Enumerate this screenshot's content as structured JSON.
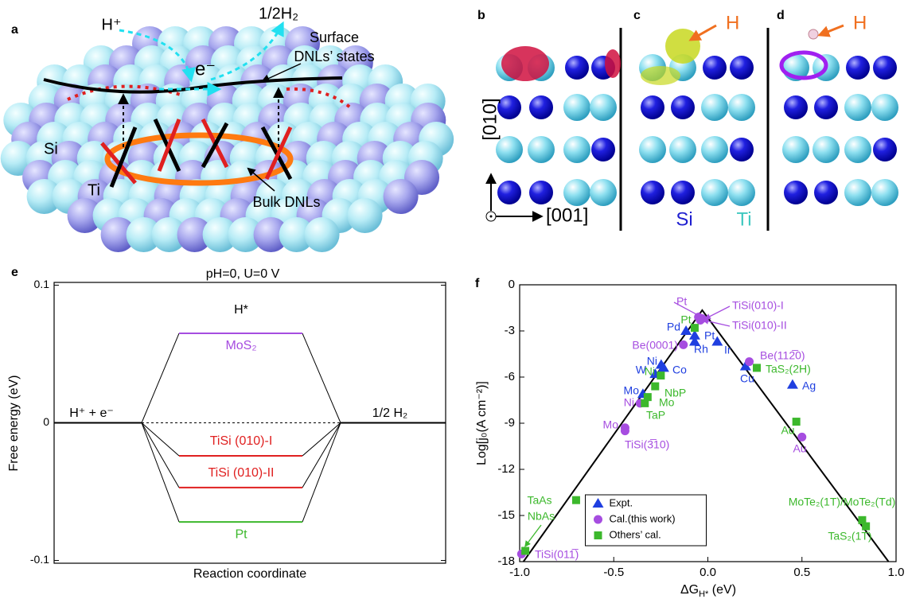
{
  "panel_a": {
    "label": "a",
    "h_plus": "H⁺",
    "half_h2": "1/2H₂",
    "surface_states": [
      "Surface",
      "DNLs’ states"
    ],
    "electron": "e⁻",
    "si": "Si",
    "ti": "Ti",
    "bulk": "Bulk DNLs"
  },
  "panels_bcd": {
    "labels": [
      "b",
      "c",
      "d"
    ],
    "h": [
      "H",
      "H"
    ],
    "axis_010": "[010]",
    "axis_001": "[001]",
    "si": "Si",
    "ti": "Ti"
  },
  "chart_data": [
    {
      "type": "line",
      "panel_label": "e",
      "title": "pH=0, U=0 V",
      "categories": [
        "H⁺ + e⁻",
        "H*",
        "1/2 H₂"
      ],
      "ylabel": "Free energy (eV)",
      "xlabel": "Reaction coordinate",
      "ylim": [
        -0.102,
        0.102
      ],
      "yticks": [
        0.1,
        0,
        -0.1
      ],
      "series": [
        {
          "name": "MoS₂",
          "color": "#a64de0",
          "values": [
            0,
            0.065,
            0
          ]
        },
        {
          "name": "TiSi (010)-I",
          "color": "#e02020",
          "values": [
            0,
            -0.024,
            0
          ]
        },
        {
          "name": "TiSi (010)-II",
          "color": "#e02020",
          "values": [
            0,
            -0.047,
            0
          ]
        },
        {
          "name": "Pt",
          "color": "#3cb82c",
          "values": [
            0,
            -0.072,
            0
          ]
        }
      ]
    },
    {
      "type": "scatter",
      "panel_label": "f",
      "ylabel": "Log[j₀(A cm⁻²)]",
      "xlabel": [
        "ΔG",
        "H*",
        " (eV)"
      ],
      "xlim": [
        -1,
        1
      ],
      "ylim": [
        -18,
        0
      ],
      "xticks": [
        {
          "value": -1,
          "label": "-1.0"
        },
        -0.5,
        {
          "value": 0,
          "label": "0.0"
        },
        0.5,
        {
          "value": 1,
          "label": "1.0"
        }
      ],
      "yticks": [
        0,
        -3,
        -6,
        -9,
        -12,
        -15,
        -18
      ],
      "legend": "lower center",
      "fit": {
        "x": [
          -0.98,
          -0.03,
          0.96
        ],
        "y": [
          -18,
          -1.65,
          -18
        ]
      },
      "series": [
        {
          "name": "Expt.",
          "color": "#1f3fe0",
          "marker": "triangle",
          "labels": [
            "W",
            "Mo",
            "Ni",
            "Co",
            "Pd",
            "Pt",
            "Rh",
            "Ir",
            "Cu",
            "Ag"
          ],
          "x": [
            -0.28,
            -0.345,
            -0.248,
            -0.235,
            -0.116,
            -0.07,
            -0.07,
            0.05,
            0.2,
            0.45
          ],
          "values": [
            -5.8,
            -7.1,
            -5.2,
            -5.4,
            -3.0,
            -3.3,
            -3.7,
            -3.7,
            -5.3,
            -6.5
          ]
        },
        {
          "name": "Cal.(this work)",
          "color": "#a64de0",
          "marker": "circle",
          "labels": [
            "Pt",
            "TiSi(010)-I",
            "TiSi(010)-II",
            "Be(0001)",
            "Ni",
            "Mo",
            "TiSi(3̅10)",
            "Be(112̅0)",
            "Au",
            "TiSi(011̅)"
          ],
          "x": [
            -0.05,
            -0.03,
            -0.04,
            -0.13,
            -0.36,
            -0.44,
            -0.44,
            0.22,
            0.5,
            -0.99
          ],
          "values": [
            -2.1,
            -2.2,
            -2.3,
            -3.9,
            -7.7,
            -9.3,
            -9.5,
            -5.0,
            -9.9,
            -17.5
          ]
        },
        {
          "name": "Others’ cal.",
          "color": "#3cb82c",
          "marker": "square",
          "labels": [
            "Pt",
            "Ni",
            "Mo",
            "NbP",
            "TaP",
            "TaS₂(2H)",
            "Au",
            "TaAs",
            "NbAs",
            "MoTe₂(1T)/MoTe₂(Td)",
            "TaS₂(1T)"
          ],
          "x": [
            -0.07,
            -0.25,
            -0.32,
            -0.28,
            -0.335,
            0.26,
            0.47,
            -0.7,
            -0.97,
            0.82,
            0.84
          ],
          "values": [
            -2.8,
            -5.9,
            -7.3,
            -6.6,
            -7.7,
            -5.4,
            -8.9,
            -14.0,
            -17.3,
            -15.3,
            -15.7
          ]
        }
      ]
    }
  ]
}
